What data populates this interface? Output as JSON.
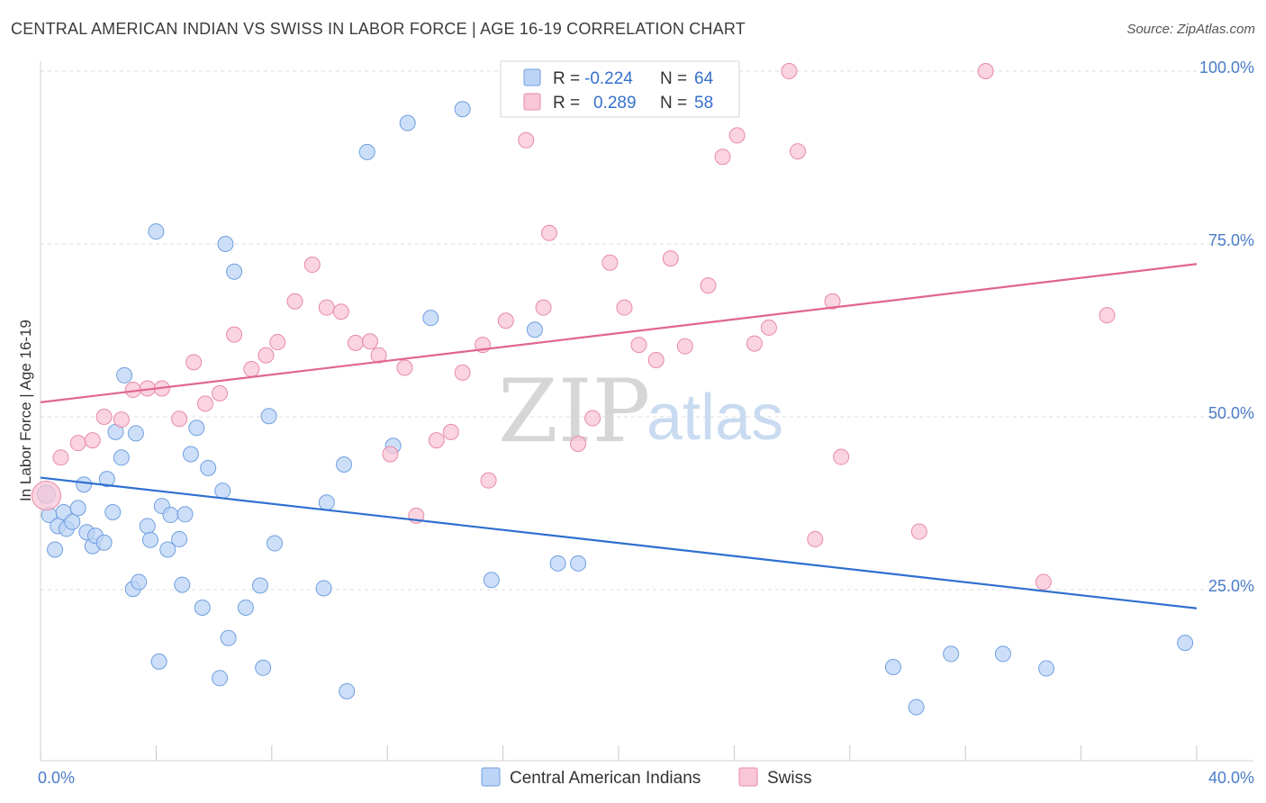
{
  "header": {
    "title": "CENTRAL AMERICAN INDIAN VS SWISS IN LABOR FORCE | AGE 16-19 CORRELATION CHART",
    "source": "Source: ZipAtlas.com"
  },
  "watermark": {
    "zip": "ZIP",
    "atlas": "atlas"
  },
  "colors": {
    "blue_fill": "#bcd4f5",
    "blue_stroke": "#6f9fe0",
    "blue_line": "#2f6fd0",
    "pink_fill": "#f8c6d6",
    "pink_stroke": "#e88aa8",
    "pink_line": "#e0658f",
    "grid": "#dddddd",
    "tick_text": "#4a7cc9"
  },
  "legend": {
    "rows": [
      {
        "r_label": "R =",
        "r_value": "-0.224",
        "n_label": "N =",
        "n_value": "64"
      },
      {
        "r_label": "R =",
        "r_value": "0.289",
        "n_label": "N =",
        "n_value": "58"
      }
    ]
  },
  "bottom_legend": [
    {
      "label": "Central American Indians"
    },
    {
      "label": "Swiss"
    }
  ],
  "chart_data": {
    "type": "scatter",
    "title": "CENTRAL AMERICAN INDIAN VS SWISS IN LABOR FORCE | AGE 16-19 CORRELATION CHART",
    "xlabel": "",
    "ylabel": "In Labor Force | Age 16-19",
    "xlim": [
      0,
      40
    ],
    "ylim": [
      0,
      105
    ],
    "x_tick_labels": [
      "0.0%",
      "40.0%"
    ],
    "y_ticks": [
      25,
      50,
      75,
      100
    ],
    "y_tick_labels": [
      "25.0%",
      "50.0%",
      "75.0%",
      "100.0%"
    ],
    "grid": true,
    "series": [
      {
        "name": "Central American Indians",
        "r": -0.224,
        "n": 64,
        "trend": {
          "x": [
            0,
            40
          ],
          "y": [
            41.2,
            22.3
          ]
        },
        "points": [
          [
            0.2,
            38.8
          ],
          [
            0.3,
            35.8
          ],
          [
            0.5,
            30.8
          ],
          [
            0.6,
            34.2
          ],
          [
            0.8,
            36.2
          ],
          [
            0.9,
            33.8
          ],
          [
            1.1,
            34.8
          ],
          [
            1.3,
            36.8
          ],
          [
            1.5,
            40.2
          ],
          [
            1.6,
            33.3
          ],
          [
            1.8,
            31.3
          ],
          [
            1.9,
            32.8
          ],
          [
            2.2,
            31.8
          ],
          [
            2.3,
            41.0
          ],
          [
            2.5,
            36.2
          ],
          [
            2.6,
            47.8
          ],
          [
            2.8,
            44.1
          ],
          [
            2.9,
            56.0
          ],
          [
            3.2,
            25.1
          ],
          [
            3.3,
            47.6
          ],
          [
            3.4,
            26.1
          ],
          [
            3.7,
            34.2
          ],
          [
            3.8,
            32.2
          ],
          [
            4.0,
            76.8
          ],
          [
            4.1,
            14.6
          ],
          [
            4.2,
            37.1
          ],
          [
            4.4,
            30.8
          ],
          [
            4.5,
            35.8
          ],
          [
            4.8,
            32.3
          ],
          [
            4.9,
            25.7
          ],
          [
            5.0,
            35.9
          ],
          [
            5.2,
            44.6
          ],
          [
            5.4,
            48.4
          ],
          [
            5.6,
            22.4
          ],
          [
            5.8,
            42.6
          ],
          [
            6.2,
            12.2
          ],
          [
            6.3,
            39.3
          ],
          [
            6.4,
            75.0
          ],
          [
            6.5,
            18.0
          ],
          [
            6.7,
            71.0
          ],
          [
            7.1,
            22.4
          ],
          [
            7.6,
            25.6
          ],
          [
            7.7,
            13.7
          ],
          [
            7.9,
            50.1
          ],
          [
            8.1,
            31.7
          ],
          [
            9.8,
            25.2
          ],
          [
            9.9,
            37.6
          ],
          [
            10.5,
            43.1
          ],
          [
            10.6,
            10.3
          ],
          [
            11.3,
            88.3
          ],
          [
            12.2,
            45.8
          ],
          [
            12.7,
            92.5
          ],
          [
            13.5,
            64.3
          ],
          [
            14.6,
            94.5
          ],
          [
            15.6,
            26.4
          ],
          [
            17.1,
            62.6
          ],
          [
            17.9,
            28.8
          ],
          [
            18.6,
            28.8
          ],
          [
            29.5,
            13.8
          ],
          [
            30.3,
            8.0
          ],
          [
            31.5,
            15.7
          ],
          [
            33.3,
            15.7
          ],
          [
            34.8,
            13.6
          ],
          [
            39.6,
            17.3
          ]
        ]
      },
      {
        "name": "Swiss",
        "r": 0.289,
        "n": 58,
        "trend": {
          "x": [
            0,
            40
          ],
          "y": [
            52.1,
            72.1
          ]
        },
        "points": [
          [
            0.2,
            38.6
          ],
          [
            0.7,
            44.1
          ],
          [
            1.3,
            46.2
          ],
          [
            1.8,
            46.6
          ],
          [
            2.2,
            50.0
          ],
          [
            2.8,
            49.6
          ],
          [
            3.2,
            53.9
          ],
          [
            3.7,
            54.1
          ],
          [
            4.2,
            54.1
          ],
          [
            4.8,
            49.7
          ],
          [
            5.3,
            57.9
          ],
          [
            5.7,
            51.9
          ],
          [
            6.2,
            53.4
          ],
          [
            6.7,
            61.9
          ],
          [
            7.3,
            56.9
          ],
          [
            7.8,
            58.9
          ],
          [
            8.2,
            60.8
          ],
          [
            8.8,
            66.7
          ],
          [
            9.4,
            72.0
          ],
          [
            9.9,
            65.8
          ],
          [
            10.4,
            65.2
          ],
          [
            10.9,
            60.7
          ],
          [
            11.4,
            60.9
          ],
          [
            11.7,
            58.9
          ],
          [
            12.1,
            44.6
          ],
          [
            12.6,
            57.1
          ],
          [
            13.0,
            35.7
          ],
          [
            13.7,
            46.6
          ],
          [
            14.2,
            47.8
          ],
          [
            14.6,
            56.4
          ],
          [
            15.3,
            60.4
          ],
          [
            15.5,
            40.8
          ],
          [
            16.1,
            63.9
          ],
          [
            16.8,
            90.0
          ],
          [
            17.4,
            65.8
          ],
          [
            17.6,
            76.6
          ],
          [
            18.6,
            46.1
          ],
          [
            19.1,
            49.8
          ],
          [
            19.7,
            72.3
          ],
          [
            20.2,
            65.8
          ],
          [
            20.7,
            60.4
          ],
          [
            21.3,
            58.2
          ],
          [
            21.8,
            72.9
          ],
          [
            22.3,
            60.2
          ],
          [
            23.1,
            69.0
          ],
          [
            23.6,
            87.6
          ],
          [
            24.1,
            90.7
          ],
          [
            24.7,
            60.6
          ],
          [
            25.2,
            62.9
          ],
          [
            25.9,
            100.0
          ],
          [
            26.2,
            88.4
          ],
          [
            26.8,
            32.3
          ],
          [
            27.4,
            66.7
          ],
          [
            27.7,
            44.2
          ],
          [
            30.4,
            33.4
          ],
          [
            32.7,
            100.0
          ],
          [
            34.7,
            26.1
          ],
          [
            36.9,
            64.7
          ]
        ]
      }
    ]
  }
}
